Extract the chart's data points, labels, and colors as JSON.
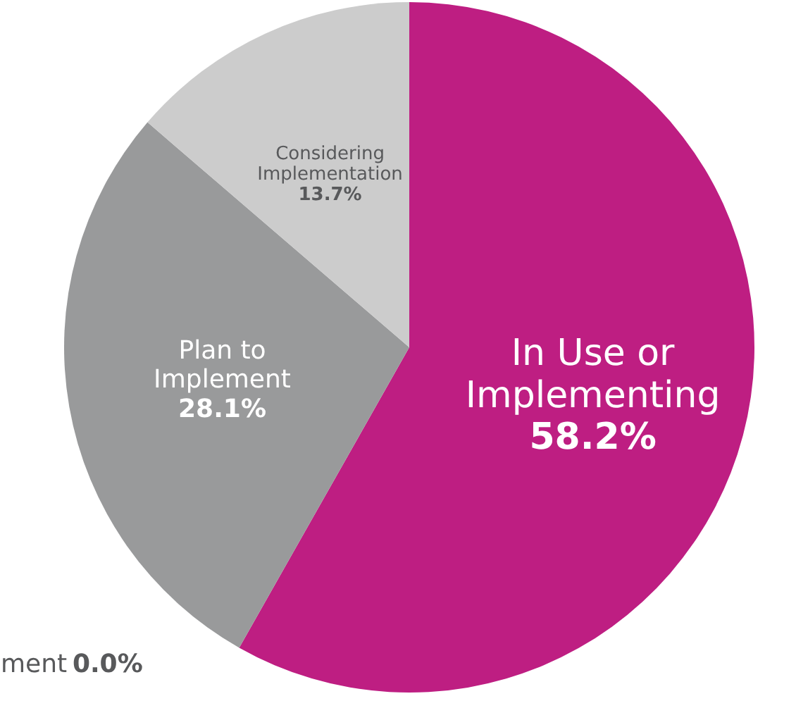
{
  "chart_data": {
    "type": "pie",
    "categories": [
      "In Use or Implementing",
      "Plan to Implement",
      "Considering Implementation",
      "ment"
    ],
    "values": [
      58.2,
      28.1,
      13.7,
      0.0
    ],
    "value_labels": [
      "58.2%",
      "28.1%",
      "13.7%",
      "0.0%"
    ],
    "colors": [
      "#be1e82",
      "#999a9b",
      "#cccccc",
      "#ffffff"
    ]
  }
}
